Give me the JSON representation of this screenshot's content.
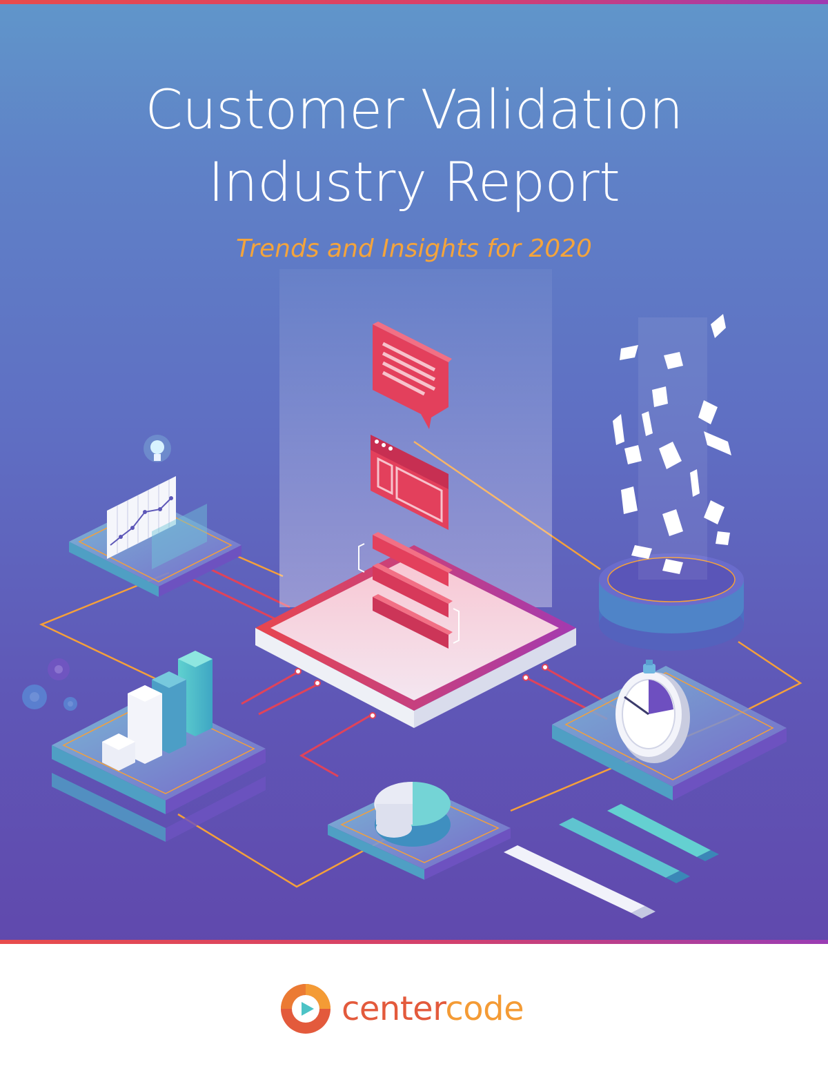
{
  "cover": {
    "title_line1": "Customer Validation",
    "title_line2": "Industry Report",
    "subtitle": "Trends and Insights for 2020"
  },
  "brand": {
    "name_part1": "center",
    "name_part2": "code",
    "colors": {
      "red": "#e35a3c",
      "orange": "#f49b35",
      "teal": "#4cc3c6"
    }
  },
  "theme": {
    "background_top": "#6096ca",
    "background_bottom": "#6049ad",
    "accent_stripe": "#e84c4c",
    "subtitle_color": "#f4a43c"
  },
  "illustration": {
    "icons": [
      "chat-bubble-icon",
      "browser-window-icon",
      "list-bars-icon",
      "line-chart-icon",
      "lightbulb-icon",
      "bar-chart-icon",
      "gears-icon",
      "pie-chart-icon",
      "stopwatch-icon",
      "falling-papers-icon",
      "database-cylinder-icon",
      "progress-bars-icon"
    ]
  }
}
